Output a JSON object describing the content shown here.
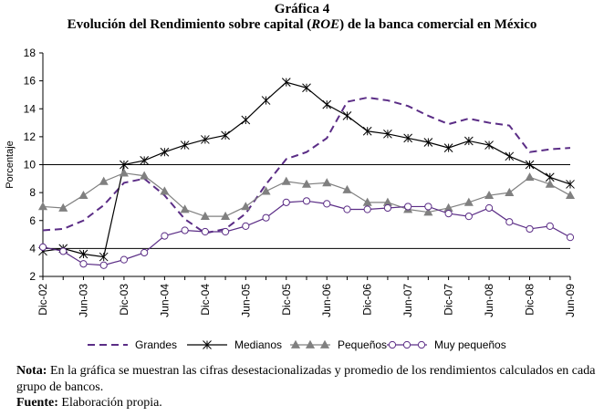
{
  "figure": {
    "label": "Gráfica 4",
    "title_pre": "Evolución del Rendimiento sobre capital (",
    "title_em": "ROE",
    "title_post": ") de la banca comercial en México"
  },
  "chart_data": {
    "type": "line",
    "ylabel": "Porcentaje",
    "ylim": [
      2,
      18
    ],
    "yticks": [
      2,
      4,
      6,
      8,
      10,
      12,
      14,
      16,
      18
    ],
    "gridlines_at": [
      4,
      10
    ],
    "x_tick_labels": [
      "Dic-02",
      "Jun-03",
      "Dic-03",
      "Jun-04",
      "Dic-04",
      "Jun-05",
      "Dic-05",
      "Jun-06",
      "Dic-06",
      "Jun-07",
      "Dic-07",
      "Jun-08",
      "Dic-08",
      "Jun-09"
    ],
    "legend_position": "bottom",
    "n_points": 27,
    "series": [
      {
        "name": "Grandes",
        "color": "#5b2d86",
        "style": "dashed",
        "marker": "none",
        "values": [
          5.3,
          5.4,
          6.0,
          7.1,
          8.7,
          9.0,
          7.8,
          6.1,
          5.1,
          5.4,
          6.5,
          8.6,
          10.4,
          10.9,
          11.9,
          14.5,
          14.8,
          14.6,
          14.2,
          13.5,
          12.9,
          13.3,
          13.0,
          12.8,
          10.9,
          11.1,
          11.2
        ]
      },
      {
        "name": "Medianos",
        "color": "#000000",
        "style": "solid",
        "marker": "asterisk",
        "values": [
          3.8,
          4.0,
          3.6,
          3.4,
          10.0,
          10.3,
          10.9,
          11.4,
          11.8,
          12.1,
          13.2,
          14.6,
          15.9,
          15.5,
          14.3,
          13.5,
          12.4,
          12.2,
          11.9,
          11.6,
          11.2,
          11.7,
          11.4,
          10.6,
          10.0,
          9.1,
          8.6
        ]
      },
      {
        "name": "Pequeños",
        "color": "#808080",
        "style": "solid",
        "marker": "triangle",
        "values": [
          7.0,
          6.9,
          7.8,
          8.8,
          9.4,
          9.2,
          8.1,
          6.8,
          6.3,
          6.3,
          7.0,
          8.1,
          8.8,
          8.6,
          8.7,
          8.2,
          7.3,
          7.3,
          6.8,
          6.6,
          6.9,
          7.3,
          7.8,
          8.0,
          9.1,
          8.6,
          7.8
        ]
      },
      {
        "name": "Muy pequeños",
        "color": "#5b2d86",
        "style": "solid",
        "marker": "circle",
        "values": [
          4.1,
          3.8,
          2.9,
          2.8,
          3.2,
          3.7,
          4.9,
          5.3,
          5.2,
          5.2,
          5.6,
          6.2,
          7.3,
          7.4,
          7.2,
          6.8,
          6.8,
          6.9,
          7.0,
          7.0,
          6.5,
          6.3,
          6.9,
          5.9,
          5.4,
          5.6,
          4.8
        ]
      }
    ]
  },
  "note": {
    "label": "Nota:",
    "text": " En la gráfica se muestran las cifras desestacionalizadas y promedio de los rendimientos calculados en cada grupo de bancos."
  },
  "source": {
    "label": "Fuente:",
    "text": " Elaboración propia."
  }
}
